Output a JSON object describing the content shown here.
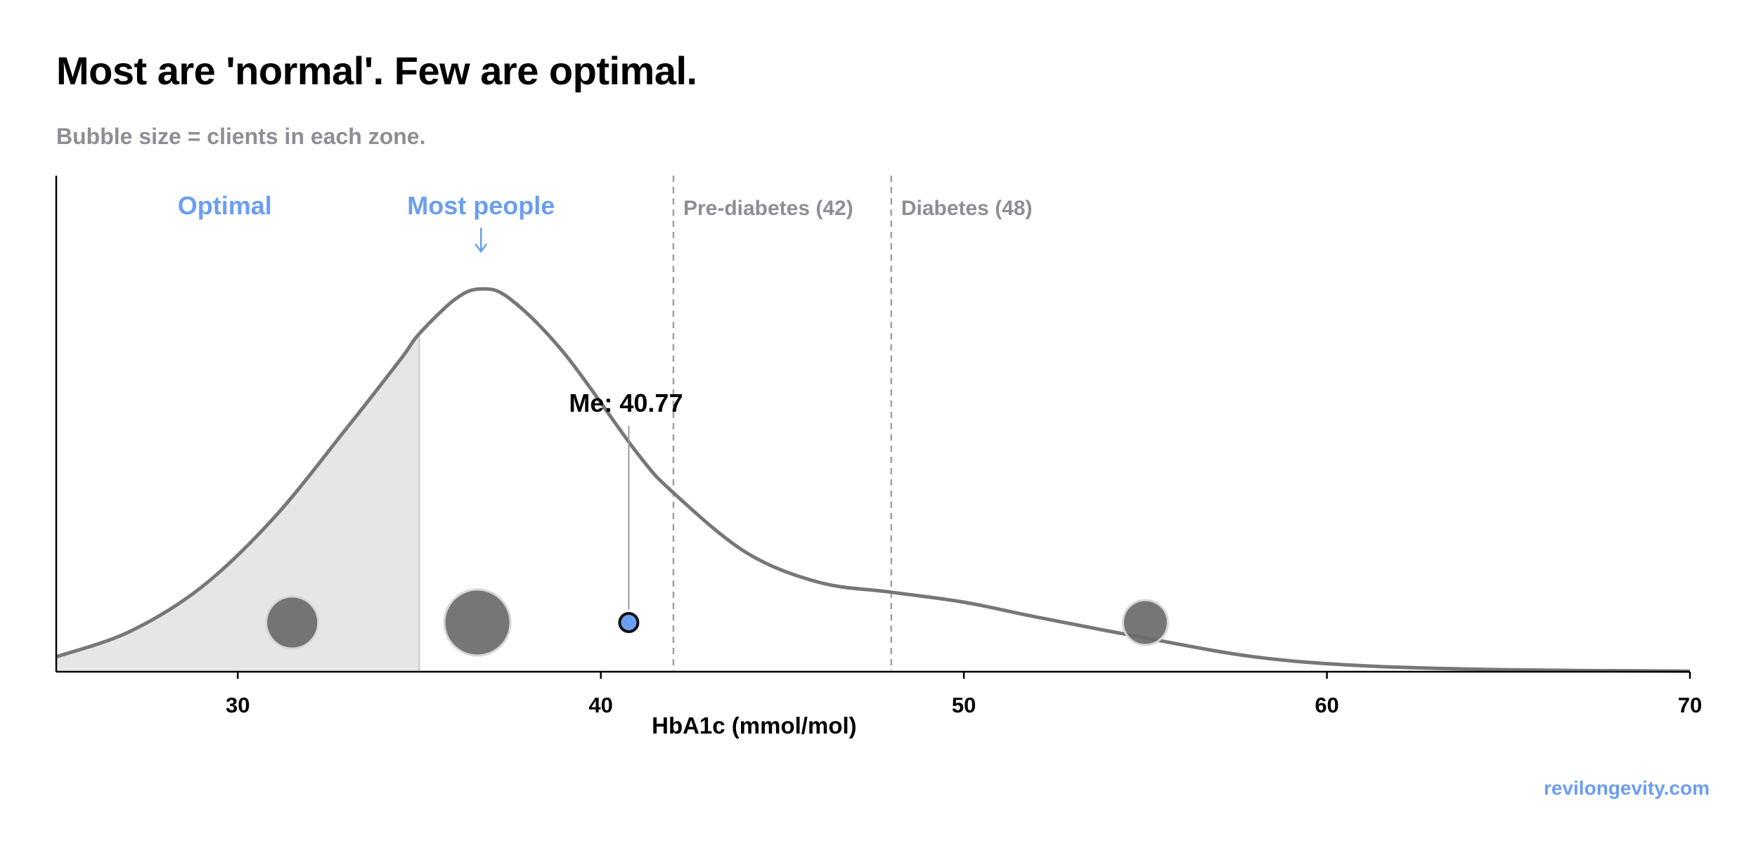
{
  "header": {
    "title": "Most are 'normal'. Few are optimal.",
    "subtitle": "Bubble size = clients in each zone."
  },
  "footer": {
    "site": "revilongevity.com"
  },
  "colors": {
    "accent": "#6b9ef0",
    "muted": "#8e8e96",
    "curve": "#777777",
    "optimal_fill": "#e6e6e6",
    "bubble": "#6a6a6a",
    "me_point": "#6b9ef0"
  },
  "chart_data": {
    "type": "area",
    "xlabel": "HbA1c (mmol/mol)",
    "ylabel": "",
    "xlim": [
      25,
      70
    ],
    "x_ticks": [
      30,
      40,
      50,
      60,
      70
    ],
    "grid": false,
    "distribution_curve": {
      "x": [
        25,
        27,
        29,
        31,
        33,
        34.5,
        35,
        36,
        36.7,
        37.5,
        39,
        41,
        42,
        44,
        46,
        48,
        50,
        52,
        55,
        58,
        61,
        65,
        70
      ],
      "y": [
        0.03,
        0.08,
        0.17,
        0.31,
        0.49,
        0.63,
        0.68,
        0.75,
        0.77,
        0.75,
        0.64,
        0.44,
        0.36,
        0.24,
        0.18,
        0.16,
        0.14,
        0.11,
        0.068,
        0.03,
        0.012,
        0.004,
        0.001
      ],
      "y_max": 0.8
    },
    "optimal_region": {
      "x_start": 25,
      "x_end": 35
    },
    "thresholds": [
      {
        "label": "Pre-diabetes (42)",
        "x": 42
      },
      {
        "label": "Diabetes (48)",
        "x": 48
      }
    ],
    "zone_labels": {
      "optimal": "Optimal",
      "most_people": "Most people",
      "most_people_x": 36.7,
      "optimal_x": 29.7
    },
    "bubbles": [
      {
        "x": 31.5,
        "relative_size": 0.62
      },
      {
        "x": 36.6,
        "relative_size": 1.0
      },
      {
        "x": 55.0,
        "relative_size": 0.46
      }
    ],
    "me": {
      "label": "Me: 40.77",
      "value": 40.77
    }
  }
}
